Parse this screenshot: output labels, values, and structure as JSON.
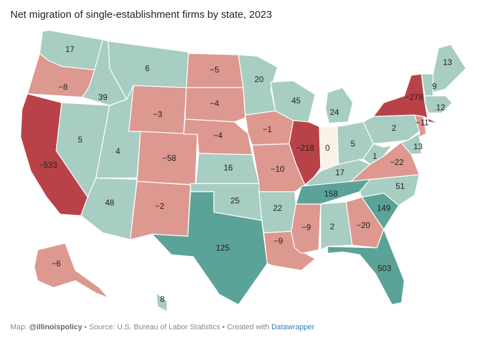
{
  "title": "Net migration of single-establishment firms by state, 2023",
  "footer": {
    "prefix": "Map: ",
    "author": "@illinoispolicy",
    "source": " • Source: U.S. Bureau of Labor Statistics • Created with ",
    "tool": "Datawrapper"
  },
  "colors": {
    "strong_neg": "#b84248",
    "neg": "#dd9890",
    "zero": "#f8f3e6",
    "pos": "#a8cdc2",
    "strong_pos": "#5ba298",
    "border": "#ffffff"
  },
  "states": [
    {
      "id": "WA",
      "value": 17
    },
    {
      "id": "OR",
      "value": -8
    },
    {
      "id": "CA",
      "value": -533
    },
    {
      "id": "NV",
      "value": 5
    },
    {
      "id": "ID",
      "value": 39
    },
    {
      "id": "MT",
      "value": 6
    },
    {
      "id": "WY",
      "value": -3
    },
    {
      "id": "UT",
      "value": 4
    },
    {
      "id": "AZ",
      "value": 48
    },
    {
      "id": "CO",
      "value": -58
    },
    {
      "id": "NM",
      "value": -2
    },
    {
      "id": "ND",
      "value": -5
    },
    {
      "id": "SD",
      "value": -4
    },
    {
      "id": "NE",
      "value": -4
    },
    {
      "id": "KS",
      "value": 16
    },
    {
      "id": "OK",
      "value": 25
    },
    {
      "id": "TX",
      "value": 125
    },
    {
      "id": "MN",
      "value": 20
    },
    {
      "id": "IA",
      "value": -1
    },
    {
      "id": "MO",
      "value": -10
    },
    {
      "id": "AR",
      "value": 22
    },
    {
      "id": "LA",
      "value": -9
    },
    {
      "id": "WI",
      "value": 45
    },
    {
      "id": "IL",
      "value": -218
    },
    {
      "id": "MS",
      "value": -9
    },
    {
      "id": "MI",
      "value": 24
    },
    {
      "id": "IN",
      "value": 0
    },
    {
      "id": "KY",
      "value": 17
    },
    {
      "id": "TN",
      "value": 158
    },
    {
      "id": "AL",
      "value": 2
    },
    {
      "id": "OH",
      "value": 5
    },
    {
      "id": "GA",
      "value": -20
    },
    {
      "id": "FL",
      "value": 503
    },
    {
      "id": "SC",
      "value": 149
    },
    {
      "id": "NC",
      "value": 51
    },
    {
      "id": "VA",
      "value": -22
    },
    {
      "id": "WV",
      "value": 1
    },
    {
      "id": "PA",
      "value": 2
    },
    {
      "id": "NY",
      "value": -278
    },
    {
      "id": "MD",
      "value": 13
    },
    {
      "id": "NJ",
      "value": -11
    },
    {
      "id": "MA",
      "value": 12
    },
    {
      "id": "VT",
      "value": 9
    },
    {
      "id": "ME",
      "value": 13
    },
    {
      "id": "AK",
      "value": -6
    },
    {
      "id": "HI",
      "value": 8
    }
  ]
}
